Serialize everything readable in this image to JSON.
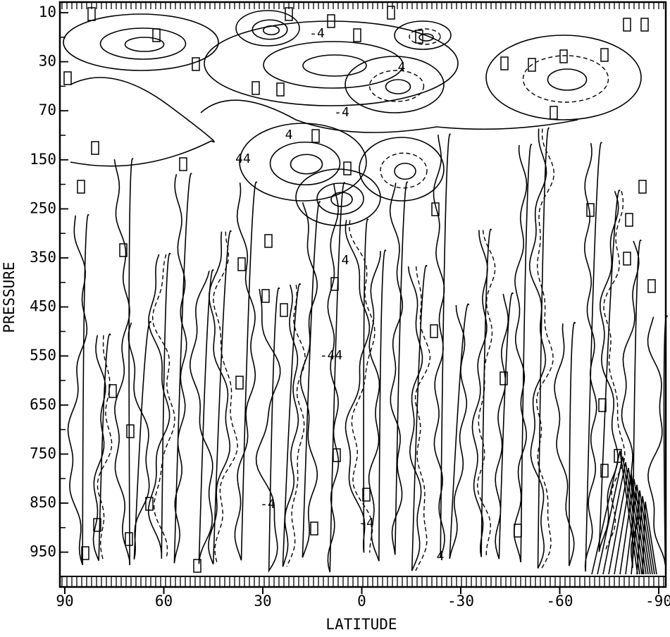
{
  "chart_data": {
    "type": "contour",
    "xlabel": "LATITUDE",
    "ylabel": "PRESSURE",
    "xlim": [
      90,
      -90
    ],
    "xticks": [
      90,
      60,
      30,
      0,
      -30,
      -60,
      -90
    ],
    "y_levels": [
      10,
      30,
      70,
      150,
      250,
      350,
      450,
      550,
      650,
      750,
      850,
      950
    ],
    "contour_labels": [
      "4",
      "-4",
      "4",
      "-4",
      "-44",
      "44",
      "4",
      "-4",
      "4",
      "-4"
    ],
    "color": "#000000"
  }
}
